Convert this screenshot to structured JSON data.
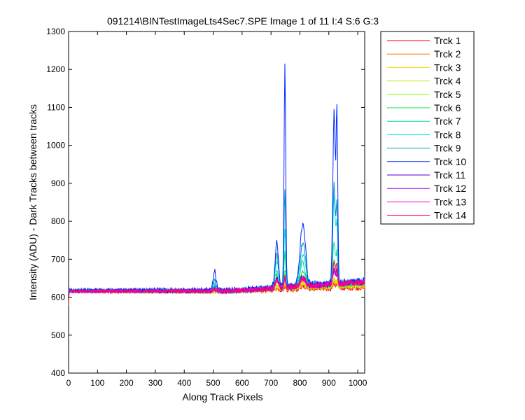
{
  "chart_data": {
    "type": "line",
    "title": "091214\\BINTestImageLts4Sec7.SPE  Image 1 of 11  I:4  S:6  G:3",
    "xlabel": "Along Track Pixels",
    "ylabel": "Intensity (ADU) - Dark Tracks between tracks",
    "xlim": [
      0,
      1024
    ],
    "ylim": [
      400,
      1300
    ],
    "xticks": [
      0,
      100,
      200,
      300,
      400,
      500,
      600,
      700,
      800,
      900,
      1000
    ],
    "yticks": [
      400,
      500,
      600,
      700,
      800,
      900,
      1000,
      1100,
      1200,
      1300
    ],
    "grid": false,
    "legend_position": "outside-right",
    "peaks": [
      {
        "x": 505,
        "width": 7
      },
      {
        "x": 720,
        "width": 8
      },
      {
        "x": 748,
        "width": 4
      },
      {
        "x": 810,
        "width": 13
      },
      {
        "x": 918,
        "width": 6
      },
      {
        "x": 928,
        "width": 4
      }
    ],
    "series": [
      {
        "name": "Trck 1",
        "color": "#ff0000",
        "baseline": [
          615,
          625
        ],
        "peaks": [
          0,
          5,
          8,
          8,
          12,
          10
        ],
        "noise": 5
      },
      {
        "name": "Trck 2",
        "color": "#ff6a00",
        "baseline": [
          615,
          628
        ],
        "peaks": [
          0,
          6,
          10,
          10,
          15,
          12
        ],
        "noise": 5
      },
      {
        "name": "Trck 3",
        "color": "#ffd200",
        "baseline": [
          615,
          630
        ],
        "peaks": [
          0,
          8,
          12,
          12,
          18,
          14
        ],
        "noise": 5
      },
      {
        "name": "Trck 4",
        "color": "#c8e600",
        "baseline": [
          615,
          632
        ],
        "peaks": [
          2,
          12,
          18,
          15,
          25,
          18
        ],
        "noise": 5
      },
      {
        "name": "Trck 5",
        "color": "#7aff00",
        "baseline": [
          616,
          635
        ],
        "peaks": [
          4,
          20,
          30,
          25,
          40,
          30
        ],
        "noise": 6
      },
      {
        "name": "Trck 6",
        "color": "#00e639",
        "baseline": [
          616,
          638
        ],
        "peaks": [
          6,
          35,
          50,
          40,
          60,
          45
        ],
        "noise": 6
      },
      {
        "name": "Trck 7",
        "color": "#00dc8c",
        "baseline": [
          617,
          640
        ],
        "peaks": [
          10,
          50,
          90,
          60,
          110,
          80
        ],
        "noise": 6
      },
      {
        "name": "Trck 8",
        "color": "#00e6dc",
        "baseline": [
          617,
          642
        ],
        "peaks": [
          15,
          70,
          160,
          80,
          230,
          160
        ],
        "noise": 7
      },
      {
        "name": "Trck 9",
        "color": "#0096c8",
        "baseline": [
          618,
          642
        ],
        "peaks": [
          25,
          90,
          260,
          110,
          260,
          200
        ],
        "noise": 7
      },
      {
        "name": "Trck 10",
        "color": "#0028ff",
        "baseline": [
          618,
          643
        ],
        "peaks": [
          50,
          120,
          590,
          165,
          450,
          440
        ],
        "noise": 8
      },
      {
        "name": "Trck 11",
        "color": "#5000dc",
        "baseline": [
          616,
          640
        ],
        "peaks": [
          5,
          25,
          30,
          25,
          35,
          30
        ],
        "noise": 6
      },
      {
        "name": "Trck 12",
        "color": "#b400ff",
        "baseline": [
          616,
          640
        ],
        "peaks": [
          5,
          22,
          26,
          22,
          35,
          28
        ],
        "noise": 6
      },
      {
        "name": "Trck 13",
        "color": "#ff00c8",
        "baseline": [
          616,
          640
        ],
        "peaks": [
          5,
          20,
          25,
          20,
          45,
          40
        ],
        "noise": 6
      },
      {
        "name": "Trck 14",
        "color": "#ff0064",
        "baseline": [
          616,
          640
        ],
        "peaks": [
          5,
          20,
          25,
          20,
          60,
          55
        ],
        "noise": 6
      }
    ]
  }
}
